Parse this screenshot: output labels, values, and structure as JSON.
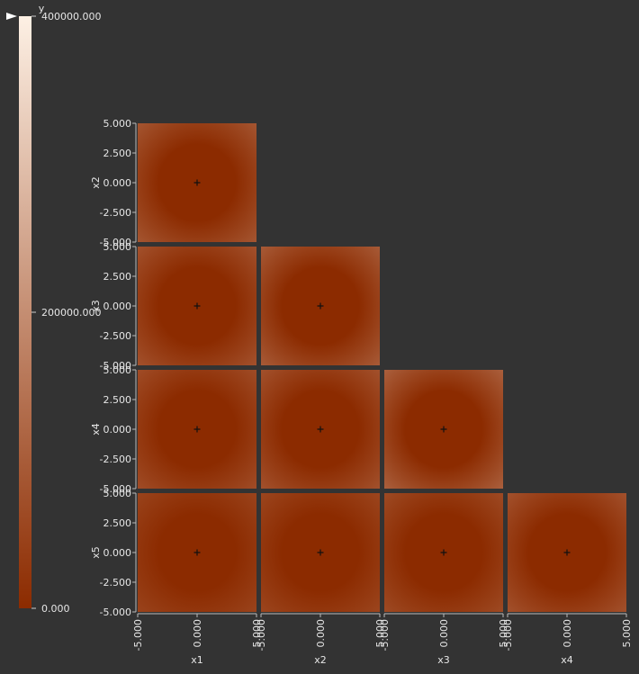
{
  "chart_data": {
    "type": "heatmap",
    "title": "",
    "colorbar": {
      "label": "y",
      "min": 0,
      "max": 400000,
      "ticks": [
        {
          "value": 400000,
          "label": "400000.000"
        },
        {
          "value": 200000,
          "label": "200000.000"
        },
        {
          "value": 0,
          "label": "0.000"
        }
      ],
      "color_low": "#8c2b00",
      "color_high": "#fdf0e4"
    },
    "variables": [
      "x1",
      "x2",
      "x3",
      "x4",
      "x5"
    ],
    "axis_range": [
      -5,
      5
    ],
    "tick_values": [
      5,
      2.5,
      0,
      -2.5,
      -5
    ],
    "y_tick_labels": [
      "5.000",
      "2.500",
      "0.000",
      "-2.500",
      "-5.000"
    ],
    "x_tick_values": [
      -5,
      0,
      5
    ],
    "x_tick_labels": [
      "-5.000",
      "0.000",
      "5.000"
    ],
    "marker": {
      "x": 0,
      "y": 0,
      "symbol": "+"
    },
    "panels": [
      {
        "row": "x2",
        "col": "x1",
        "edge_value": 90000
      },
      {
        "row": "x3",
        "col": "x1",
        "edge_value": 80000
      },
      {
        "row": "x3",
        "col": "x2",
        "edge_value": 100000
      },
      {
        "row": "x4",
        "col": "x1",
        "edge_value": 70000
      },
      {
        "row": "x4",
        "col": "x2",
        "edge_value": 80000
      },
      {
        "row": "x4",
        "col": "x3",
        "edge_value": 110000
      },
      {
        "row": "x5",
        "col": "x1",
        "edge_value": 50000
      },
      {
        "row": "x5",
        "col": "x2",
        "edge_value": 55000
      },
      {
        "row": "x5",
        "col": "x3",
        "edge_value": 65000
      },
      {
        "row": "x5",
        "col": "x4",
        "edge_value": 80000
      }
    ]
  }
}
